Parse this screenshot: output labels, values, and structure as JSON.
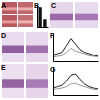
{
  "panels": [
    {
      "label": "A"
    },
    {
      "label": "B"
    },
    {
      "label": "C"
    },
    {
      "label": "D"
    },
    {
      "label": "E"
    },
    {
      "label": "F"
    },
    {
      "label": "G"
    }
  ],
  "chart_data": [
    {
      "type": "bar",
      "categories": [
        null,
        null
      ],
      "values": [
        0.9,
        0.35
      ],
      "color": "#111111",
      "ylim": [
        0,
        1
      ],
      "tick_labels": false
    },
    {
      "type": "line",
      "x": [
        0,
        1,
        2,
        3,
        4,
        5,
        6,
        7,
        8,
        9,
        10
      ],
      "xlim": [
        0,
        10
      ],
      "ylim": [
        0,
        1
      ],
      "tick_labels": false,
      "series": [
        {
          "name": null,
          "color": "#222222",
          "values": [
            0.2,
            0.25,
            0.3,
            0.55,
            0.8,
            0.6,
            0.4,
            0.3,
            0.25,
            0.2,
            0.2
          ]
        },
        {
          "name": null,
          "color": "#999999",
          "values": [
            0.15,
            0.18,
            0.2,
            0.3,
            0.45,
            0.35,
            0.3,
            0.25,
            0.2,
            0.18,
            0.15
          ]
        }
      ]
    },
    {
      "type": "line",
      "x": [
        0,
        1,
        2,
        3,
        4,
        5,
        6,
        7,
        8,
        9,
        10
      ],
      "xlim": [
        0,
        10
      ],
      "ylim": [
        0,
        1
      ],
      "tick_labels": false,
      "series": [
        {
          "name": null,
          "color": "#222222",
          "values": [
            0.25,
            0.3,
            0.35,
            0.5,
            0.7,
            0.75,
            0.55,
            0.4,
            0.3,
            0.25,
            0.22
          ]
        },
        {
          "name": null,
          "color": "#999999",
          "values": [
            0.2,
            0.22,
            0.25,
            0.3,
            0.4,
            0.42,
            0.35,
            0.3,
            0.25,
            0.2,
            0.2
          ]
        }
      ]
    }
  ]
}
